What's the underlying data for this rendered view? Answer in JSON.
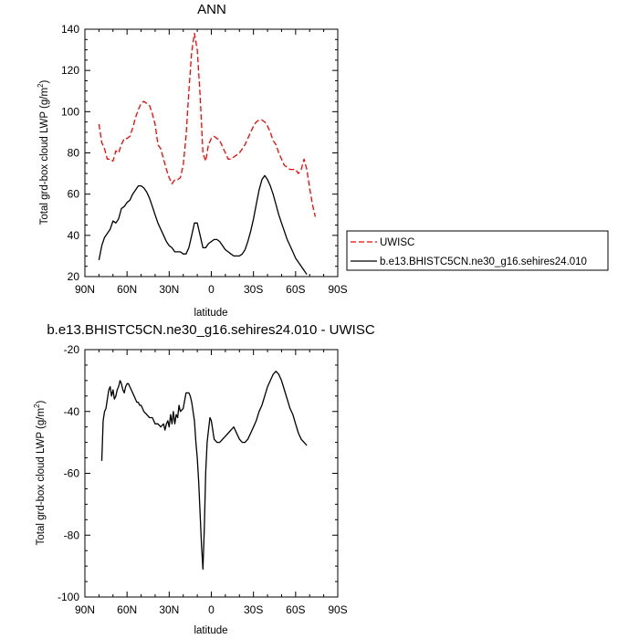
{
  "chart_data": [
    {
      "type": "line",
      "title": "ANN",
      "xlabel": "latitude",
      "ylabel": "Total grd-box cloud LWP (g/m",
      "ylabel_sup": "2",
      "ylabel_end": ")",
      "xlim": [
        90,
        -90
      ],
      "ylim": [
        20,
        140
      ],
      "xticks": [
        90,
        60,
        30,
        0,
        -30,
        -60,
        -90
      ],
      "xtick_labels": [
        "90N",
        "60N",
        "30N",
        "0",
        "30S",
        "60S",
        "90S"
      ],
      "yticks": [
        20,
        40,
        60,
        80,
        100,
        120,
        140
      ],
      "ytick_labels": [
        "20",
        "40",
        "60",
        "80",
        "100",
        "120",
        "140"
      ],
      "grid": false,
      "legend_position": "right",
      "series": [
        {
          "name": "UWISC",
          "color": "#ff0000",
          "dash": "dashed",
          "x": [
            80,
            78,
            76,
            74,
            72,
            70,
            68,
            66,
            64,
            62,
            60,
            58,
            56,
            54,
            52,
            50,
            48,
            46,
            44,
            42,
            40,
            38,
            36,
            34,
            32,
            30,
            28,
            26,
            24,
            22,
            20,
            18,
            16,
            14,
            12,
            10,
            8,
            6,
            4,
            2,
            0,
            -2,
            -4,
            -6,
            -8,
            -10,
            -12,
            -14,
            -16,
            -18,
            -20,
            -22,
            -24,
            -26,
            -28,
            -30,
            -32,
            -34,
            -36,
            -38,
            -40,
            -42,
            -44,
            -46,
            -48,
            -50,
            -52,
            -54,
            -56,
            -58,
            -60,
            -62,
            -64,
            -66,
            -68,
            -70,
            -72,
            -74
          ],
          "y": [
            94,
            85,
            82,
            77,
            77,
            76,
            81,
            80,
            84,
            87,
            87,
            88,
            92,
            97,
            101,
            104,
            105,
            104,
            103,
            99,
            94,
            84,
            82,
            77,
            72,
            68,
            65,
            67,
            67,
            68,
            74,
            88,
            110,
            129,
            138,
            130,
            108,
            80,
            76,
            84,
            87,
            88,
            87,
            86,
            83,
            80,
            77,
            77,
            78,
            79,
            80,
            82,
            84,
            87,
            90,
            93,
            95,
            96,
            96,
            95,
            93,
            90,
            86,
            84,
            80,
            77,
            74,
            73,
            72,
            72,
            72,
            70,
            72,
            77,
            72,
            63,
            55,
            49
          ]
        },
        {
          "name": "b.e13.BHISTC5CN.ne30_g16.sehires24.010",
          "color": "#000000",
          "dash": "solid",
          "x": [
            80,
            78,
            76,
            74,
            72,
            70,
            68,
            66,
            64,
            62,
            60,
            58,
            56,
            54,
            52,
            50,
            48,
            46,
            44,
            42,
            40,
            38,
            36,
            34,
            32,
            30,
            28,
            26,
            24,
            22,
            20,
            18,
            16,
            14,
            12,
            10,
            8,
            6,
            4,
            2,
            0,
            -2,
            -4,
            -6,
            -8,
            -10,
            -12,
            -14,
            -16,
            -18,
            -20,
            -22,
            -24,
            -26,
            -28,
            -30,
            -32,
            -34,
            -36,
            -38,
            -40,
            -42,
            -44,
            -46,
            -48,
            -50,
            -52,
            -54,
            -56,
            -58,
            -60,
            -62,
            -64,
            -66,
            -68
          ],
          "y": [
            28,
            35,
            39,
            41,
            43,
            47,
            46,
            48,
            53,
            54,
            56,
            57,
            60,
            62,
            64,
            64,
            63,
            61,
            58,
            54,
            50,
            46,
            43,
            40,
            37,
            35,
            34,
            32,
            32,
            32,
            31,
            31,
            34,
            40,
            46,
            46,
            40,
            34,
            34,
            36,
            37,
            38,
            38,
            37,
            35,
            33,
            32,
            31,
            30,
            30,
            30,
            31,
            33,
            37,
            42,
            48,
            55,
            62,
            67,
            69,
            67,
            64,
            60,
            55,
            50,
            46,
            42,
            38,
            35,
            32,
            29,
            27,
            25,
            23,
            21
          ]
        }
      ]
    },
    {
      "type": "line",
      "title": "b.e13.BHISTC5CN.ne30_g16.sehires24.010 - UWISC",
      "xlabel": "latitude",
      "ylabel": "Total grd-box cloud LWP (g/m",
      "ylabel_sup": "2",
      "ylabel_end": ")",
      "xlim": [
        90,
        -90
      ],
      "ylim": [
        -100,
        -20
      ],
      "xticks": [
        90,
        60,
        30,
        0,
        -30,
        -60,
        -90
      ],
      "xtick_labels": [
        "90N",
        "60N",
        "30N",
        "0",
        "30S",
        "60S",
        "90S"
      ],
      "yticks": [
        -100,
        -80,
        -60,
        -40,
        -20
      ],
      "ytick_labels": [
        "-100",
        "-80",
        "-60",
        "-40",
        "-20"
      ],
      "grid": false,
      "series": [
        {
          "color": "#000000",
          "dash": "solid",
          "x": [
            78,
            77,
            76,
            75,
            74,
            73,
            72,
            71,
            70,
            69,
            68,
            67,
            66,
            65,
            64,
            63,
            62,
            61,
            60,
            59,
            58,
            57,
            56,
            55,
            54,
            53,
            52,
            51,
            50,
            48,
            46,
            44,
            42,
            40,
            38,
            36,
            34,
            33,
            32,
            31,
            30,
            29,
            28,
            27,
            26,
            25,
            24,
            23,
            22,
            20,
            18,
            16,
            15,
            14,
            13,
            12,
            11,
            10,
            9,
            8,
            7,
            6,
            5,
            4,
            3,
            2,
            1,
            0,
            -2,
            -4,
            -6,
            -8,
            -10,
            -12,
            -14,
            -16,
            -18,
            -20,
            -22,
            -24,
            -26,
            -28,
            -30,
            -32,
            -34,
            -36,
            -38,
            -40,
            -42,
            -44,
            -46,
            -48,
            -50,
            -52,
            -54,
            -56,
            -58,
            -60,
            -62,
            -64,
            -66,
            -68
          ],
          "y": [
            -56,
            -43,
            -40,
            -39,
            -36,
            -33,
            -32,
            -35,
            -33,
            -36,
            -35,
            -33,
            -32,
            -30,
            -31,
            -33,
            -34,
            -32,
            -31,
            -31,
            -32,
            -33,
            -34,
            -35,
            -36,
            -37,
            -37,
            -38,
            -38,
            -40,
            -41,
            -42,
            -42,
            -44,
            -44,
            -45,
            -44,
            -46,
            -44,
            -43,
            -45,
            -41,
            -44,
            -40,
            -44,
            -41,
            -42,
            -38,
            -40,
            -39,
            -34,
            -34,
            -35,
            -37,
            -40,
            -43,
            -50,
            -55,
            -63,
            -73,
            -83,
            -91,
            -78,
            -60,
            -50,
            -46,
            -42,
            -43,
            -49,
            -50,
            -50,
            -49,
            -48,
            -47,
            -46,
            -45,
            -47,
            -49,
            -50,
            -50,
            -49,
            -47,
            -45,
            -43,
            -40,
            -38,
            -35,
            -32,
            -30,
            -28,
            -27,
            -28,
            -30,
            -33,
            -36,
            -39,
            -41,
            -44,
            -47,
            -49,
            -50,
            -51
          ]
        }
      ]
    }
  ]
}
